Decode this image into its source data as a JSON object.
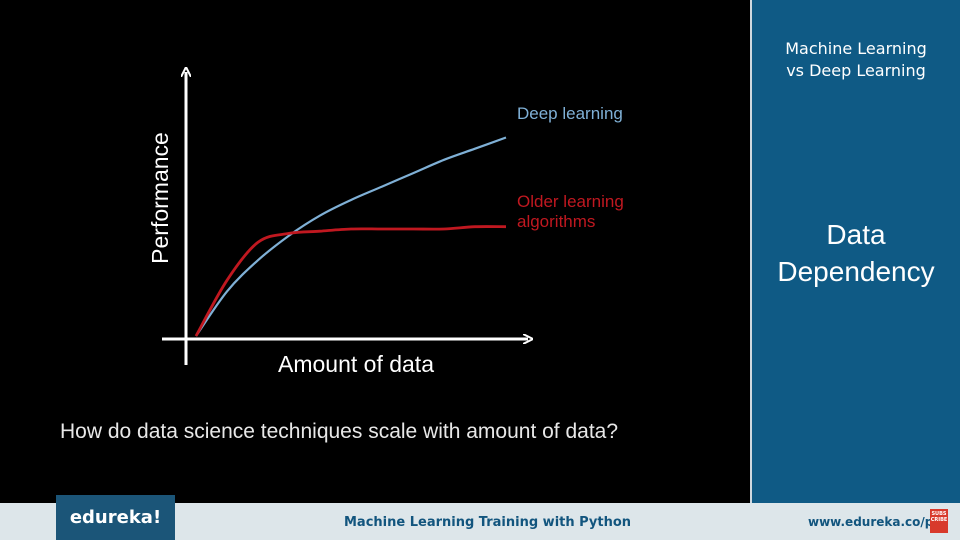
{
  "slide": {
    "question": "How do data science techniques scale with amount of data?"
  },
  "sidebar": {
    "title_line1": "Machine Learning",
    "title_line2": "vs Deep Learning",
    "section_line1": "Data",
    "section_line2": "Dependency"
  },
  "footer": {
    "brand": "edureka!",
    "course": "Machine Learning Training with Python",
    "url": "www.edureka.co/python",
    "badge": [
      "SUBS",
      "CRIBE"
    ]
  },
  "colors": {
    "deep": "#7fb0d6",
    "older": "#c01820",
    "axis": "#ffffff"
  },
  "chart_data": {
    "type": "line",
    "title": "",
    "xlabel": "Amount of data",
    "ylabel": "Performance",
    "xlim": [
      0,
      1
    ],
    "ylim": [
      0,
      1
    ],
    "grid": false,
    "series": [
      {
        "name": "Deep learning",
        "x": [
          0.0,
          0.1,
          0.2,
          0.3,
          0.4,
          0.5,
          0.6,
          0.7,
          0.8,
          0.9,
          1.0
        ],
        "y": [
          0.0,
          0.2,
          0.34,
          0.45,
          0.54,
          0.61,
          0.67,
          0.73,
          0.79,
          0.84,
          0.89
        ]
      },
      {
        "name": "Older learning algorithms",
        "x": [
          0.0,
          0.1,
          0.2,
          0.3,
          0.4,
          0.5,
          0.6,
          0.7,
          0.8,
          0.9,
          1.0
        ],
        "y": [
          0.0,
          0.25,
          0.42,
          0.46,
          0.47,
          0.48,
          0.48,
          0.48,
          0.48,
          0.49,
          0.49
        ]
      }
    ],
    "legend_labels": [
      [
        "Deep learning"
      ],
      [
        "Older learning",
        "algorithms"
      ]
    ]
  }
}
